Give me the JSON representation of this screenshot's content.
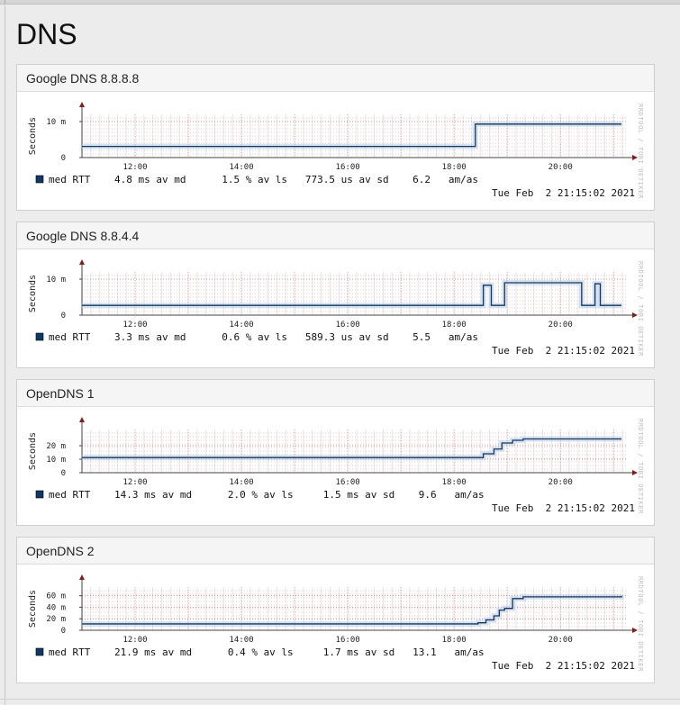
{
  "page": {
    "title": "DNS"
  },
  "colors": {
    "line": "#0a3a6a",
    "band": "#b8cde4",
    "grid": "#e88888",
    "axis": "#444444",
    "legend_box": "#0a3a6a"
  },
  "chart_data": [
    {
      "type": "line",
      "title": "Google DNS 8.8.8.8",
      "ylabel": "Seconds",
      "ylim": [
        0,
        0.012
      ],
      "y_ticks": [
        {
          "v": 0,
          "label": "0"
        },
        {
          "v": 0.01,
          "label": "10 m"
        }
      ],
      "x_ticks": [
        "12:00",
        "14:00",
        "16:00",
        "18:00",
        "20:00"
      ],
      "watermark": "RRDTOOL / TOBI OETIKER",
      "legend": {
        "name": "med RTT",
        "stats": "4.8 ms av md      1.5 % av ls   773.5 us av sd    6.2   am/as"
      },
      "timestamp": "Tue Feb  2 21:15:02 2021",
      "series": [
        {
          "name": "med RTT",
          "x": [
            11.0,
            18.35,
            18.4,
            21.15
          ],
          "y": [
            0.0031,
            0.0031,
            0.0093,
            0.0093
          ]
        }
      ]
    },
    {
      "type": "line",
      "title": "Google DNS 8.8.4.4",
      "ylabel": "Seconds",
      "ylim": [
        0,
        0.012
      ],
      "y_ticks": [
        {
          "v": 0,
          "label": "0"
        },
        {
          "v": 0.01,
          "label": "10 m"
        }
      ],
      "x_ticks": [
        "12:00",
        "14:00",
        "16:00",
        "18:00",
        "20:00"
      ],
      "watermark": "RRDTOOL / TOBI OETIKER",
      "legend": {
        "name": "med RTT",
        "stats": "3.3 ms av md      0.6 % av ls   589.3 us av sd    5.5   am/as"
      },
      "timestamp": "Tue Feb  2 21:15:02 2021",
      "series": [
        {
          "name": "med RTT",
          "x": [
            11.0,
            18.55,
            18.55,
            18.7,
            18.7,
            18.95,
            18.95,
            20.4,
            20.4,
            20.65,
            20.65,
            20.75,
            20.75,
            21.15
          ],
          "y": [
            0.0027,
            0.0027,
            0.0083,
            0.0083,
            0.0027,
            0.0027,
            0.009,
            0.009,
            0.0027,
            0.0027,
            0.0087,
            0.0087,
            0.0027,
            0.0027
          ]
        }
      ]
    },
    {
      "type": "line",
      "title": "OpenDNS 1",
      "ylabel": "Seconds",
      "ylim": [
        0,
        0.032
      ],
      "y_ticks": [
        {
          "v": 0,
          "label": "0"
        },
        {
          "v": 0.01,
          "label": "10 m"
        },
        {
          "v": 0.02,
          "label": "20 m"
        }
      ],
      "x_ticks": [
        "12:00",
        "14:00",
        "16:00",
        "18:00",
        "20:00"
      ],
      "watermark": "RRDTOOL / TOBI OETIKER",
      "legend": {
        "name": "med RTT",
        "stats": "14.3 ms av md      2.0 % av ls     1.5 ms av sd    9.6   am/as"
      },
      "timestamp": "Tue Feb  2 21:15:02 2021",
      "series": [
        {
          "name": "med RTT",
          "x": [
            11.0,
            18.45,
            18.55,
            18.75,
            18.9,
            19.1,
            19.3,
            21.15
          ],
          "y": [
            0.0112,
            0.0112,
            0.014,
            0.0175,
            0.022,
            0.024,
            0.025,
            0.025
          ]
        }
      ]
    },
    {
      "type": "line",
      "title": "OpenDNS 2",
      "ylabel": "Seconds",
      "ylim": [
        0,
        0.075
      ],
      "y_ticks": [
        {
          "v": 0,
          "label": "0"
        },
        {
          "v": 0.02,
          "label": "20 m"
        },
        {
          "v": 0.04,
          "label": "40 m"
        },
        {
          "v": 0.06,
          "label": "60 m"
        }
      ],
      "x_ticks": [
        "12:00",
        "14:00",
        "16:00",
        "18:00",
        "20:00"
      ],
      "watermark": "RRDTOOL / TOBI OETIKER",
      "legend": {
        "name": "med RTT",
        "stats": "21.9 ms av md      0.4 % av ls     1.7 ms av sd   13.1   am/as"
      },
      "timestamp": "Tue Feb  2 21:15:02 2021",
      "series": [
        {
          "name": "med RTT",
          "x": [
            11.0,
            18.3,
            18.45,
            18.6,
            18.75,
            18.85,
            18.95,
            19.1,
            19.3,
            21.15
          ],
          "y": [
            0.011,
            0.011,
            0.013,
            0.018,
            0.025,
            0.035,
            0.038,
            0.055,
            0.058,
            0.06
          ]
        }
      ]
    }
  ]
}
